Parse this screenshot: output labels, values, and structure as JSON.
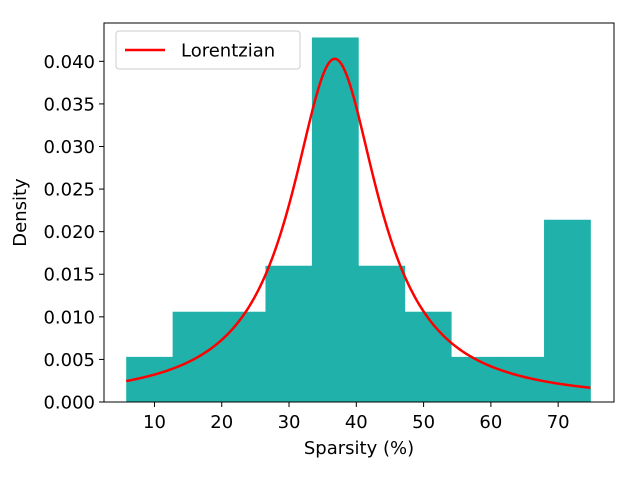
{
  "chart_data": {
    "type": "bar",
    "subtype": "histogram",
    "xlabel": "Sparsity (%)",
    "ylabel": "Density",
    "xlim": [
      2.5,
      78.3
    ],
    "ylim": [
      0,
      0.0445
    ],
    "xticks": [
      10,
      20,
      30,
      40,
      50,
      60,
      70
    ],
    "yticks": [
      0.0,
      0.005,
      0.01,
      0.015,
      0.02,
      0.025,
      0.03,
      0.035,
      0.04
    ],
    "ytick_labels": [
      "0.000",
      "0.005",
      "0.010",
      "0.015",
      "0.020",
      "0.025",
      "0.030",
      "0.035",
      "0.040"
    ],
    "grid": false,
    "bins": {
      "edges": [
        5.8,
        12.7,
        19.6,
        26.5,
        33.4,
        40.3,
        47.2,
        54.1,
        61.0,
        67.9,
        74.8
      ],
      "densities": [
        0.0053,
        0.0106,
        0.0106,
        0.016,
        0.0428,
        0.016,
        0.0106,
        0.0053,
        0.0053,
        0.0214
      ],
      "color": "#20b2aa"
    },
    "series": [
      {
        "name": "Lorentzian",
        "kind": "line",
        "color": "#ff0000",
        "x0": 36.8,
        "gamma": 7.9,
        "peak_density": 0.0403,
        "x_range": [
          5.8,
          74.8
        ]
      }
    ],
    "legend": {
      "position": "top-left",
      "entries": [
        "Lorentzian"
      ]
    }
  }
}
